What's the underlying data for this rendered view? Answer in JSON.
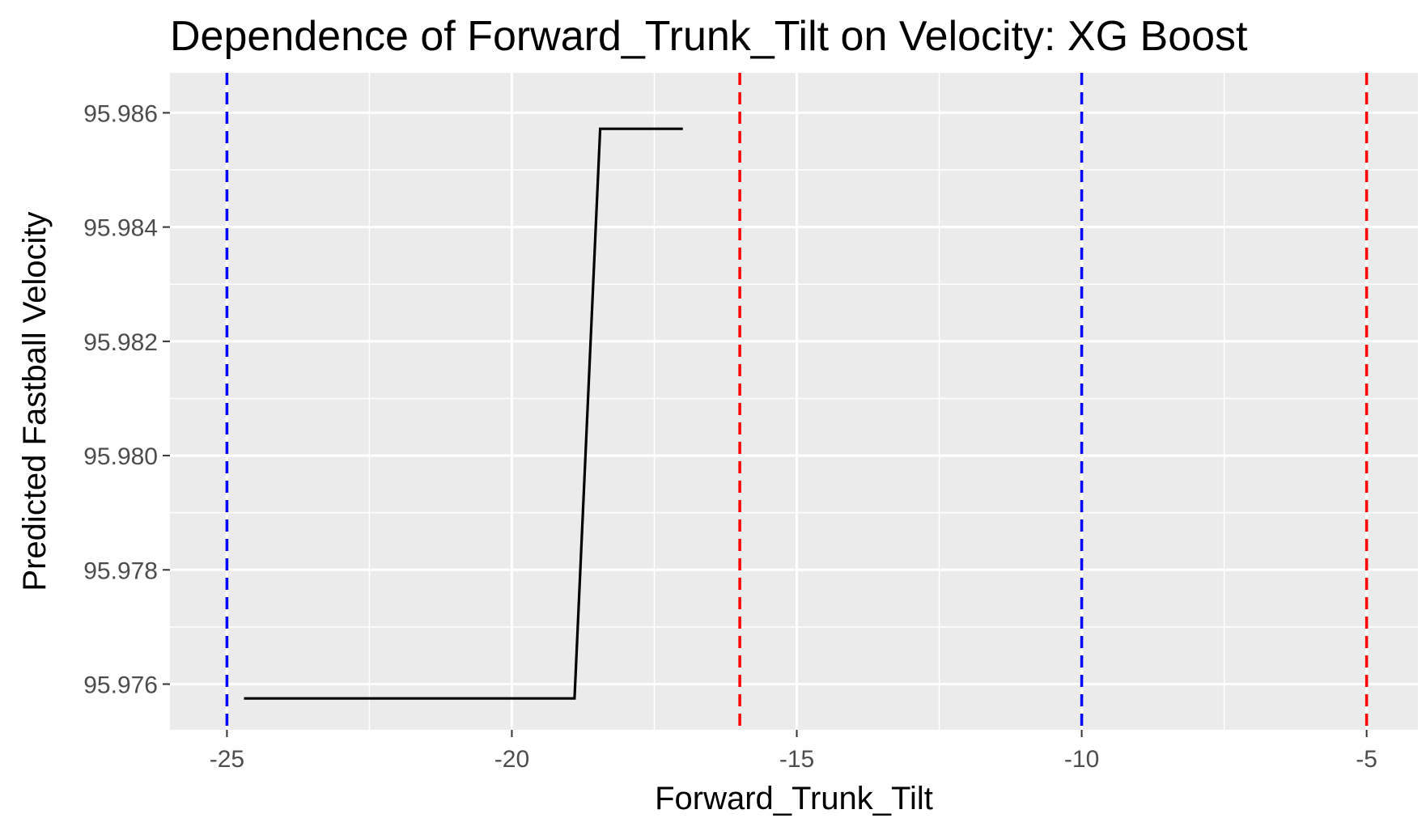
{
  "chart_data": {
    "type": "line",
    "title": "Dependence of Forward_Trunk_Tilt on Velocity: XG Boost",
    "xlabel": "Forward_Trunk_Tilt",
    "ylabel": "Predicted Fastball Velocity",
    "xlim": [
      -26,
      -4.1
    ],
    "ylim": [
      95.9752,
      95.9867
    ],
    "x_ticks": [
      -25,
      -20,
      -15,
      -10,
      -5
    ],
    "x_tick_labels": [
      "-25",
      "-20",
      "-15",
      "-10",
      "-5"
    ],
    "y_ticks": [
      95.976,
      95.978,
      95.98,
      95.982,
      95.984,
      95.986
    ],
    "y_tick_labels": [
      "95.976",
      "95.978",
      "95.980",
      "95.982",
      "95.984",
      "95.986"
    ],
    "grid": true,
    "background": "#ebebeb",
    "series": [
      {
        "color": "#000000",
        "x": [
          -24.7,
          -18.9,
          -18.45,
          -17.0
        ],
        "y": [
          95.97575,
          95.97575,
          95.98572,
          95.98572
        ]
      }
    ],
    "vlines": [
      {
        "x": -25,
        "color": "#0000ff",
        "style": "dashed"
      },
      {
        "x": -16,
        "color": "#ff0000",
        "style": "dashed"
      },
      {
        "x": -10,
        "color": "#0000ff",
        "style": "dashed"
      },
      {
        "x": -5,
        "color": "#ff0000",
        "style": "dashed"
      }
    ]
  }
}
